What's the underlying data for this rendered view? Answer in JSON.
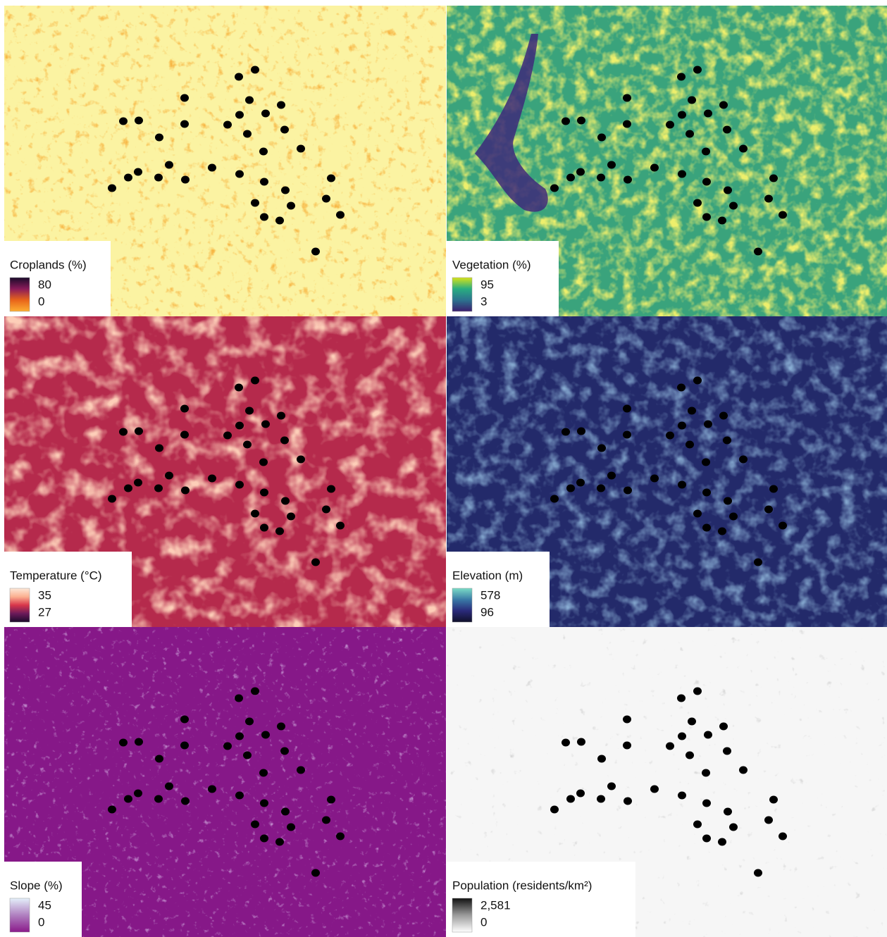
{
  "panels": [
    {
      "title": "Croplands (%)",
      "max": 80,
      "min": 0
    },
    {
      "title": "Vegetation (%)",
      "max": 95,
      "min": 3
    },
    {
      "title": "Temperature (°C)",
      "max": 35,
      "min": 27
    },
    {
      "title": "Elevation (m)",
      "max": 578,
      "min": 96
    },
    {
      "title": "Slope (%)",
      "max": 45,
      "min": 0
    },
    {
      "title": "Population (residents/km²)",
      "max": {
        "value": 2581,
        "label": "2,581"
      },
      "min": 0
    }
  ]
}
